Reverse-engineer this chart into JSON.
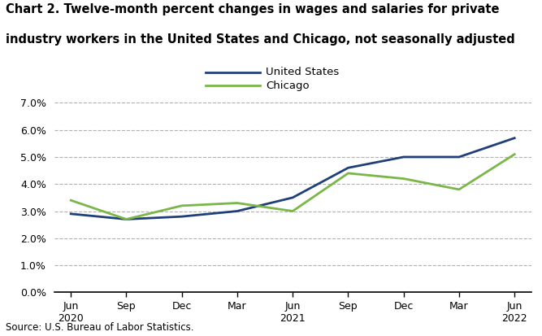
{
  "title_line1": "Chart 2. Twelve-month percent changes in wages and salaries for private",
  "title_line2": "industry workers in the United States and Chicago, not seasonally adjusted",
  "x_labels": [
    "Jun\n2020",
    "Sep",
    "Dec",
    "Mar",
    "Jun\n2021",
    "Sep",
    "Dec",
    "Mar",
    "Jun\n2022"
  ],
  "x_positions": [
    0,
    1,
    2,
    3,
    4,
    5,
    6,
    7,
    8
  ],
  "us_values": [
    0.029,
    0.027,
    0.028,
    0.03,
    0.035,
    0.046,
    0.05,
    0.05,
    0.057
  ],
  "chicago_values": [
    0.034,
    0.027,
    0.032,
    0.033,
    0.03,
    0.044,
    0.042,
    0.038,
    0.051
  ],
  "us_color": "#1f3f7a",
  "chicago_color": "#7ab648",
  "us_label": "United States",
  "chicago_label": "Chicago",
  "ylim": [
    0.0,
    0.072
  ],
  "yticks": [
    0.0,
    0.01,
    0.02,
    0.03,
    0.04,
    0.05,
    0.06,
    0.07
  ],
  "source_text": "Source: U.S. Bureau of Labor Statistics.",
  "line_width": 2.0,
  "grid_color": "#b0b0b0",
  "background_color": "#ffffff"
}
